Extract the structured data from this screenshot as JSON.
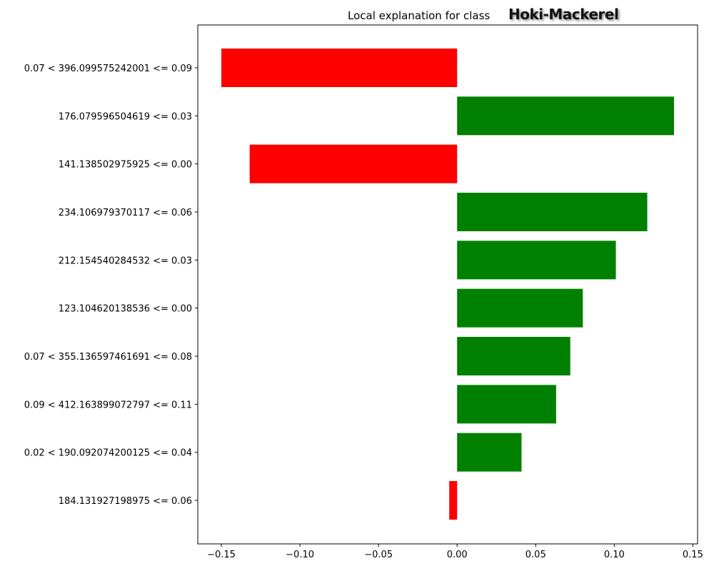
{
  "chart_data": {
    "type": "bar",
    "orientation": "horizontal",
    "title": "Local explanation for class",
    "title_class": "Hoki-Mackerel",
    "categories": [
      "0.07 < 396.099575242001 <= 0.09",
      "176.079596504619 <= 0.03",
      "141.138502975925 <= 0.00",
      "234.106979370117 <= 0.06",
      "212.154540284532 <= 0.03",
      "123.104620138536 <= 0.00",
      "0.07 < 355.136597461691 <= 0.08",
      "0.09 < 412.163899072797 <= 0.11",
      "0.02 < 190.092074200125 <= 0.04",
      "184.131927198975 <= 0.06"
    ],
    "values": [
      -0.15,
      0.138,
      -0.132,
      0.121,
      0.101,
      0.08,
      0.072,
      0.063,
      0.041,
      -0.005
    ],
    "xlim": [
      -0.165,
      0.153
    ],
    "xticks": [
      -0.15,
      -0.1,
      -0.05,
      0.0,
      0.05,
      0.1,
      0.15
    ],
    "xtick_labels": [
      "−0.15",
      "−0.10",
      "−0.05",
      "0.00",
      "0.05",
      "0.10",
      "0.15"
    ],
    "xlabel": "",
    "ylabel": "",
    "grid": false,
    "colors": {
      "positive": "#008000",
      "negative": "#ff0000"
    }
  }
}
